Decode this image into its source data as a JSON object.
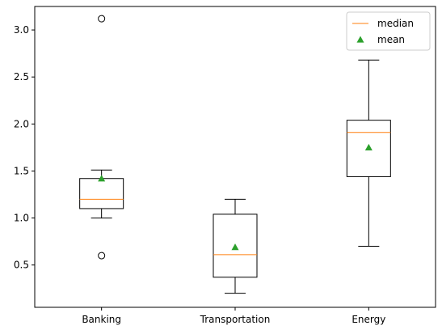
{
  "chart_data": {
    "type": "box",
    "title": "",
    "xlabel": "",
    "ylabel": "",
    "ylim": [
      0.05,
      3.25
    ],
    "yticks": [
      0.5,
      1.0,
      1.5,
      2.0,
      2.5,
      3.0
    ],
    "ytick_labels": [
      "0.5",
      "1.0",
      "1.5",
      "2.0",
      "2.5",
      "3.0"
    ],
    "categories": [
      "Banking",
      "Transportation",
      "Energy"
    ],
    "boxes": [
      {
        "whislo": 1.0,
        "q1": 1.1,
        "med": 1.2,
        "q3": 1.42,
        "whishi": 1.51,
        "mean": 1.42,
        "fliers": [
          0.6,
          3.12
        ]
      },
      {
        "whislo": 0.2,
        "q1": 0.37,
        "med": 0.61,
        "q3": 1.04,
        "whishi": 1.2,
        "mean": 0.69,
        "fliers": []
      },
      {
        "whislo": 0.7,
        "q1": 1.44,
        "med": 1.91,
        "q3": 2.04,
        "whishi": 2.68,
        "mean": 1.75,
        "fliers": []
      }
    ],
    "legend": {
      "position": "top-right",
      "entries": [
        {
          "label": "median",
          "marker": "line",
          "color": "#ff7f0e"
        },
        {
          "label": "mean",
          "marker": "triangle",
          "color": "#2ca02c"
        }
      ]
    },
    "colors": {
      "box": "#000000",
      "median": "#ff7f0e",
      "mean": "#2ca02c"
    }
  }
}
